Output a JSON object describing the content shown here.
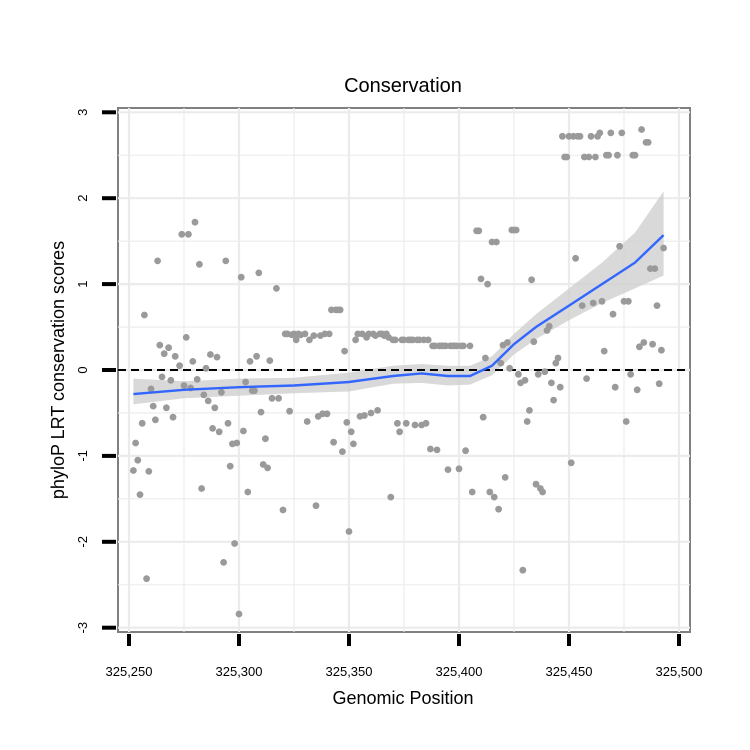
{
  "chart_data": {
    "type": "scatter",
    "title": "Conservation",
    "xlabel": "Genomic Position",
    "ylabel": "phyloP LRT conservation scores",
    "xlim": [
      325245,
      325505
    ],
    "ylim": [
      -3.05,
      3.05
    ],
    "x_ticks": [
      325250,
      325300,
      325350,
      325400,
      325450,
      325500
    ],
    "x_tick_labels": [
      "325,250",
      "325,300",
      "325,350",
      "325,400",
      "325,450",
      "325,500"
    ],
    "y_ticks": [
      -3,
      -2,
      -1,
      0,
      1,
      2,
      3
    ],
    "y_tick_labels": [
      "-3",
      "-2",
      "-1",
      "0",
      "1",
      "2",
      "3"
    ],
    "reference_line": {
      "y": 0,
      "style": "dashed"
    },
    "grid": true,
    "point_color": "#9a9a9a",
    "smooth_color": "#3366ff",
    "band_color": "#d0d0d0",
    "background_color": "#ffffff",
    "grid_color": "#ebebeb",
    "points": [
      [
        325252,
        -1.17
      ],
      [
        325253,
        -0.85
      ],
      [
        325254,
        -1.05
      ],
      [
        325255,
        -1.45
      ],
      [
        325256,
        -0.62
      ],
      [
        325257,
        0.64
      ],
      [
        325258,
        -2.43
      ],
      [
        325259,
        -1.18
      ],
      [
        325260,
        -0.22
      ],
      [
        325261,
        -0.42
      ],
      [
        325262,
        -0.58
      ],
      [
        325263,
        1.27
      ],
      [
        325264,
        0.29
      ],
      [
        325265,
        -0.08
      ],
      [
        325266,
        0.19
      ],
      [
        325267,
        -0.44
      ],
      [
        325268,
        0.26
      ],
      [
        325269,
        -0.12
      ],
      [
        325270,
        -0.55
      ],
      [
        325271,
        0.16
      ],
      [
        325273,
        0.05
      ],
      [
        325274,
        1.58
      ],
      [
        325275,
        -0.18
      ],
      [
        325276,
        0.38
      ],
      [
        325277,
        1.58
      ],
      [
        325278,
        -0.21
      ],
      [
        325279,
        0.1
      ],
      [
        325280,
        1.72
      ],
      [
        325281,
        -0.11
      ],
      [
        325282,
        1.23
      ],
      [
        325283,
        -1.38
      ],
      [
        325284,
        -0.29
      ],
      [
        325285,
        0.02
      ],
      [
        325286,
        -0.36
      ],
      [
        325287,
        0.18
      ],
      [
        325288,
        -0.68
      ],
      [
        325289,
        -0.44
      ],
      [
        325290,
        0.15
      ],
      [
        325291,
        -0.72
      ],
      [
        325292,
        -0.26
      ],
      [
        325293,
        -2.24
      ],
      [
        325294,
        1.27
      ],
      [
        325295,
        -0.62
      ],
      [
        325296,
        -1.12
      ],
      [
        325297,
        -0.86
      ],
      [
        325298,
        -2.02
      ],
      [
        325299,
        -0.85
      ],
      [
        325300,
        -2.84
      ],
      [
        325301,
        1.08
      ],
      [
        325302,
        -0.71
      ],
      [
        325303,
        -0.14
      ],
      [
        325304,
        -1.42
      ],
      [
        325305,
        0.1
      ],
      [
        325306,
        -0.24
      ],
      [
        325307,
        -0.24
      ],
      [
        325308,
        0.16
      ],
      [
        325309,
        1.13
      ],
      [
        325310,
        -0.49
      ],
      [
        325311,
        -1.1
      ],
      [
        325312,
        -0.8
      ],
      [
        325313,
        -1.14
      ],
      [
        325314,
        0.11
      ],
      [
        325315,
        -0.33
      ],
      [
        325317,
        0.95
      ],
      [
        325318,
        -0.33
      ],
      [
        325320,
        -1.63
      ],
      [
        325321,
        0.42
      ],
      [
        325322,
        0.42
      ],
      [
        325323,
        -0.48
      ],
      [
        325324,
        0.41
      ],
      [
        325325,
        0.42
      ],
      [
        325326,
        0.35
      ],
      [
        325327,
        0.42
      ],
      [
        325328,
        0.41
      ],
      [
        325330,
        0.42
      ],
      [
        325331,
        -0.6
      ],
      [
        325332,
        0.35
      ],
      [
        325334,
        0.4
      ],
      [
        325335,
        -1.58
      ],
      [
        325336,
        -0.54
      ],
      [
        325337,
        0.4
      ],
      [
        325338,
        -0.51
      ],
      [
        325339,
        0.42
      ],
      [
        325340,
        -0.51
      ],
      [
        325341,
        0.42
      ],
      [
        325342,
        0.7
      ],
      [
        325343,
        -0.84
      ],
      [
        325344,
        0.7
      ],
      [
        325345,
        0.7
      ],
      [
        325346,
        0.7
      ],
      [
        325347,
        -0.95
      ],
      [
        325348,
        0.22
      ],
      [
        325349,
        -0.61
      ],
      [
        325350,
        -1.88
      ],
      [
        325351,
        -0.72
      ],
      [
        325352,
        -0.86
      ],
      [
        325353,
        0.35
      ],
      [
        325354,
        0.42
      ],
      [
        325355,
        -0.54
      ],
      [
        325356,
        0.42
      ],
      [
        325357,
        -0.53
      ],
      [
        325358,
        0.38
      ],
      [
        325359,
        0.42
      ],
      [
        325360,
        -0.5
      ],
      [
        325361,
        0.42
      ],
      [
        325362,
        0.4
      ],
      [
        325363,
        -0.47
      ],
      [
        325364,
        0.42
      ],
      [
        325365,
        0.42
      ],
      [
        325366,
        0.4
      ],
      [
        325367,
        0.42
      ],
      [
        325368,
        0.38
      ],
      [
        325369,
        -1.48
      ],
      [
        325370,
        0.35
      ],
      [
        325371,
        0.35
      ],
      [
        325372,
        -0.62
      ],
      [
        325373,
        -0.72
      ],
      [
        325374,
        0.35
      ],
      [
        325375,
        0.35
      ],
      [
        325376,
        -0.62
      ],
      [
        325377,
        0.35
      ],
      [
        325378,
        0.35
      ],
      [
        325379,
        0.35
      ],
      [
        325380,
        -0.64
      ],
      [
        325381,
        0.35
      ],
      [
        325382,
        0.35
      ],
      [
        325383,
        -0.64
      ],
      [
        325384,
        0.35
      ],
      [
        325385,
        -0.62
      ],
      [
        325386,
        0.35
      ],
      [
        325387,
        -0.92
      ],
      [
        325388,
        0.28
      ],
      [
        325389,
        0.28
      ],
      [
        325390,
        -0.93
      ],
      [
        325391,
        0.28
      ],
      [
        325392,
        0.28
      ],
      [
        325393,
        0.28
      ],
      [
        325394,
        0.28
      ],
      [
        325395,
        -1.16
      ],
      [
        325396,
        0.28
      ],
      [
        325397,
        0.28
      ],
      [
        325398,
        0.28
      ],
      [
        325399,
        0.28
      ],
      [
        325400,
        -1.15
      ],
      [
        325401,
        0.28
      ],
      [
        325402,
        0.28
      ],
      [
        325403,
        -0.94
      ],
      [
        325405,
        0.28
      ],
      [
        325406,
        -1.42
      ],
      [
        325408,
        1.62
      ],
      [
        325409,
        1.62
      ],
      [
        325410,
        1.06
      ],
      [
        325411,
        -0.55
      ],
      [
        325412,
        0.14
      ],
      [
        325413,
        1.0
      ],
      [
        325414,
        -1.42
      ],
      [
        325415,
        1.49
      ],
      [
        325416,
        -1.48
      ],
      [
        325417,
        1.49
      ],
      [
        325418,
        -1.62
      ],
      [
        325419,
        0.08
      ],
      [
        325420,
        0.29
      ],
      [
        325421,
        -1.25
      ],
      [
        325422,
        0.32
      ],
      [
        325423,
        0.02
      ],
      [
        325424,
        1.63
      ],
      [
        325425,
        1.63
      ],
      [
        325426,
        1.63
      ],
      [
        325427,
        -0.05
      ],
      [
        325428,
        -0.15
      ],
      [
        325429,
        -2.33
      ],
      [
        325430,
        -0.12
      ],
      [
        325431,
        -0.6
      ],
      [
        325432,
        -0.47
      ],
      [
        325433,
        1.05
      ],
      [
        325434,
        0.33
      ],
      [
        325435,
        -1.33
      ],
      [
        325436,
        -0.05
      ],
      [
        325437,
        -1.38
      ],
      [
        325438,
        -1.42
      ],
      [
        325439,
        -0.02
      ],
      [
        325440,
        0.46
      ],
      [
        325441,
        0.51
      ],
      [
        325442,
        -0.15
      ],
      [
        325443,
        -0.35
      ],
      [
        325444,
        0.08
      ],
      [
        325445,
        0.14
      ],
      [
        325446,
        -0.2
      ],
      [
        325447,
        2.72
      ],
      [
        325448,
        2.48
      ],
      [
        325449,
        2.48
      ],
      [
        325450,
        2.72
      ],
      [
        325451,
        -1.08
      ],
      [
        325452,
        2.72
      ],
      [
        325453,
        1.3
      ],
      [
        325454,
        2.72
      ],
      [
        325455,
        2.72
      ],
      [
        325456,
        0.75
      ],
      [
        325457,
        2.48
      ],
      [
        325458,
        -0.1
      ],
      [
        325459,
        2.48
      ],
      [
        325460,
        2.72
      ],
      [
        325461,
        0.78
      ],
      [
        325462,
        2.48
      ],
      [
        325463,
        2.72
      ],
      [
        325464,
        2.76
      ],
      [
        325465,
        0.8
      ],
      [
        325466,
        0.22
      ],
      [
        325467,
        2.5
      ],
      [
        325468,
        2.5
      ],
      [
        325469,
        2.76
      ],
      [
        325470,
        0.65
      ],
      [
        325471,
        -0.2
      ],
      [
        325472,
        2.5
      ],
      [
        325473,
        1.44
      ],
      [
        325474,
        2.76
      ],
      [
        325475,
        0.8
      ],
      [
        325476,
        -0.6
      ],
      [
        325477,
        0.8
      ],
      [
        325478,
        -0.05
      ],
      [
        325479,
        2.5
      ],
      [
        325480,
        2.5
      ],
      [
        325481,
        -0.23
      ],
      [
        325482,
        0.27
      ],
      [
        325483,
        2.8
      ],
      [
        325484,
        0.32
      ],
      [
        325485,
        2.65
      ],
      [
        325486,
        2.65
      ],
      [
        325487,
        1.18
      ],
      [
        325488,
        0.3
      ],
      [
        325489,
        1.18
      ],
      [
        325490,
        0.75
      ],
      [
        325491,
        -0.16
      ],
      [
        325492,
        0.23
      ],
      [
        325493,
        1.42
      ]
    ],
    "smooth": [
      [
        325252,
        -0.28
      ],
      [
        325275,
        -0.23
      ],
      [
        325300,
        -0.2
      ],
      [
        325325,
        -0.18
      ],
      [
        325350,
        -0.14
      ],
      [
        325370,
        -0.07
      ],
      [
        325383,
        -0.04
      ],
      [
        325395,
        -0.07
      ],
      [
        325405,
        -0.07
      ],
      [
        325415,
        0.05
      ],
      [
        325425,
        0.3
      ],
      [
        325435,
        0.5
      ],
      [
        325450,
        0.75
      ],
      [
        325465,
        1.0
      ],
      [
        325480,
        1.25
      ],
      [
        325493,
        1.57
      ]
    ],
    "band": [
      [
        325252,
        -0.4,
        -0.1
      ],
      [
        325275,
        -0.33,
        -0.13
      ],
      [
        325300,
        -0.3,
        -0.1
      ],
      [
        325325,
        -0.27,
        -0.09
      ],
      [
        325350,
        -0.25,
        -0.03
      ],
      [
        325370,
        -0.16,
        0.05
      ],
      [
        325383,
        -0.15,
        0.07
      ],
      [
        325395,
        -0.18,
        0.05
      ],
      [
        325405,
        -0.17,
        0.05
      ],
      [
        325415,
        -0.06,
        0.16
      ],
      [
        325425,
        0.18,
        0.42
      ],
      [
        325435,
        0.36,
        0.65
      ],
      [
        325450,
        0.58,
        0.95
      ],
      [
        325465,
        0.78,
        1.25
      ],
      [
        325480,
        0.95,
        1.6
      ],
      [
        325493,
        1.1,
        2.08
      ]
    ]
  }
}
